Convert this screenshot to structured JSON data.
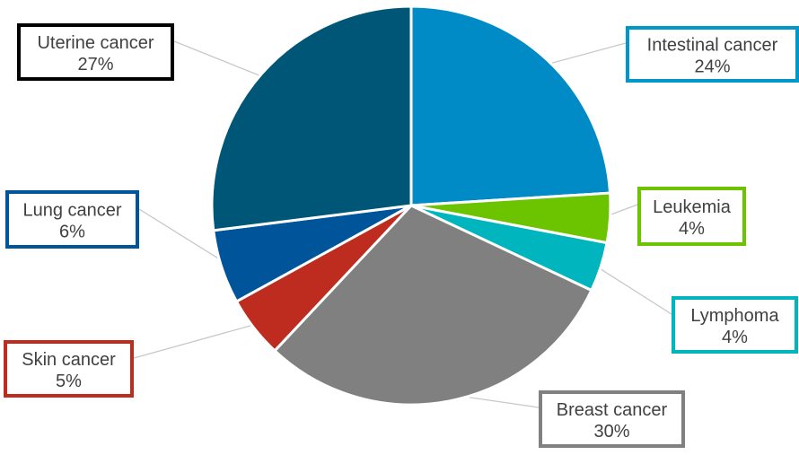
{
  "chart_data": {
    "type": "pie",
    "title": "",
    "slices": [
      {
        "label": "Intestinal cancer",
        "value": 24,
        "value_label": "24%",
        "color": "#008BC6"
      },
      {
        "label": "Leukemia",
        "value": 4,
        "value_label": "4%",
        "color": "#6CC400"
      },
      {
        "label": "Lymphoma",
        "value": 4,
        "value_label": "4%",
        "color": "#00B5BD"
      },
      {
        "label": "Breast cancer",
        "value": 30,
        "value_label": "30%",
        "color": "#808080"
      },
      {
        "label": "Skin cancer",
        "value": 5,
        "value_label": "5%",
        "color": "#BE2B1F"
      },
      {
        "label": "Lung cancer",
        "value": 6,
        "value_label": "6%",
        "color": "#00559A"
      },
      {
        "label": "Uterine cancer",
        "value": 27,
        "value_label": "27%",
        "color": "#005676"
      }
    ],
    "label_border_colors": [
      "#0098C9",
      "#6CC400",
      "#00B5BD",
      "#808080",
      "#BE2B1F",
      "#00559A",
      "#000000"
    ],
    "legend": "none"
  }
}
